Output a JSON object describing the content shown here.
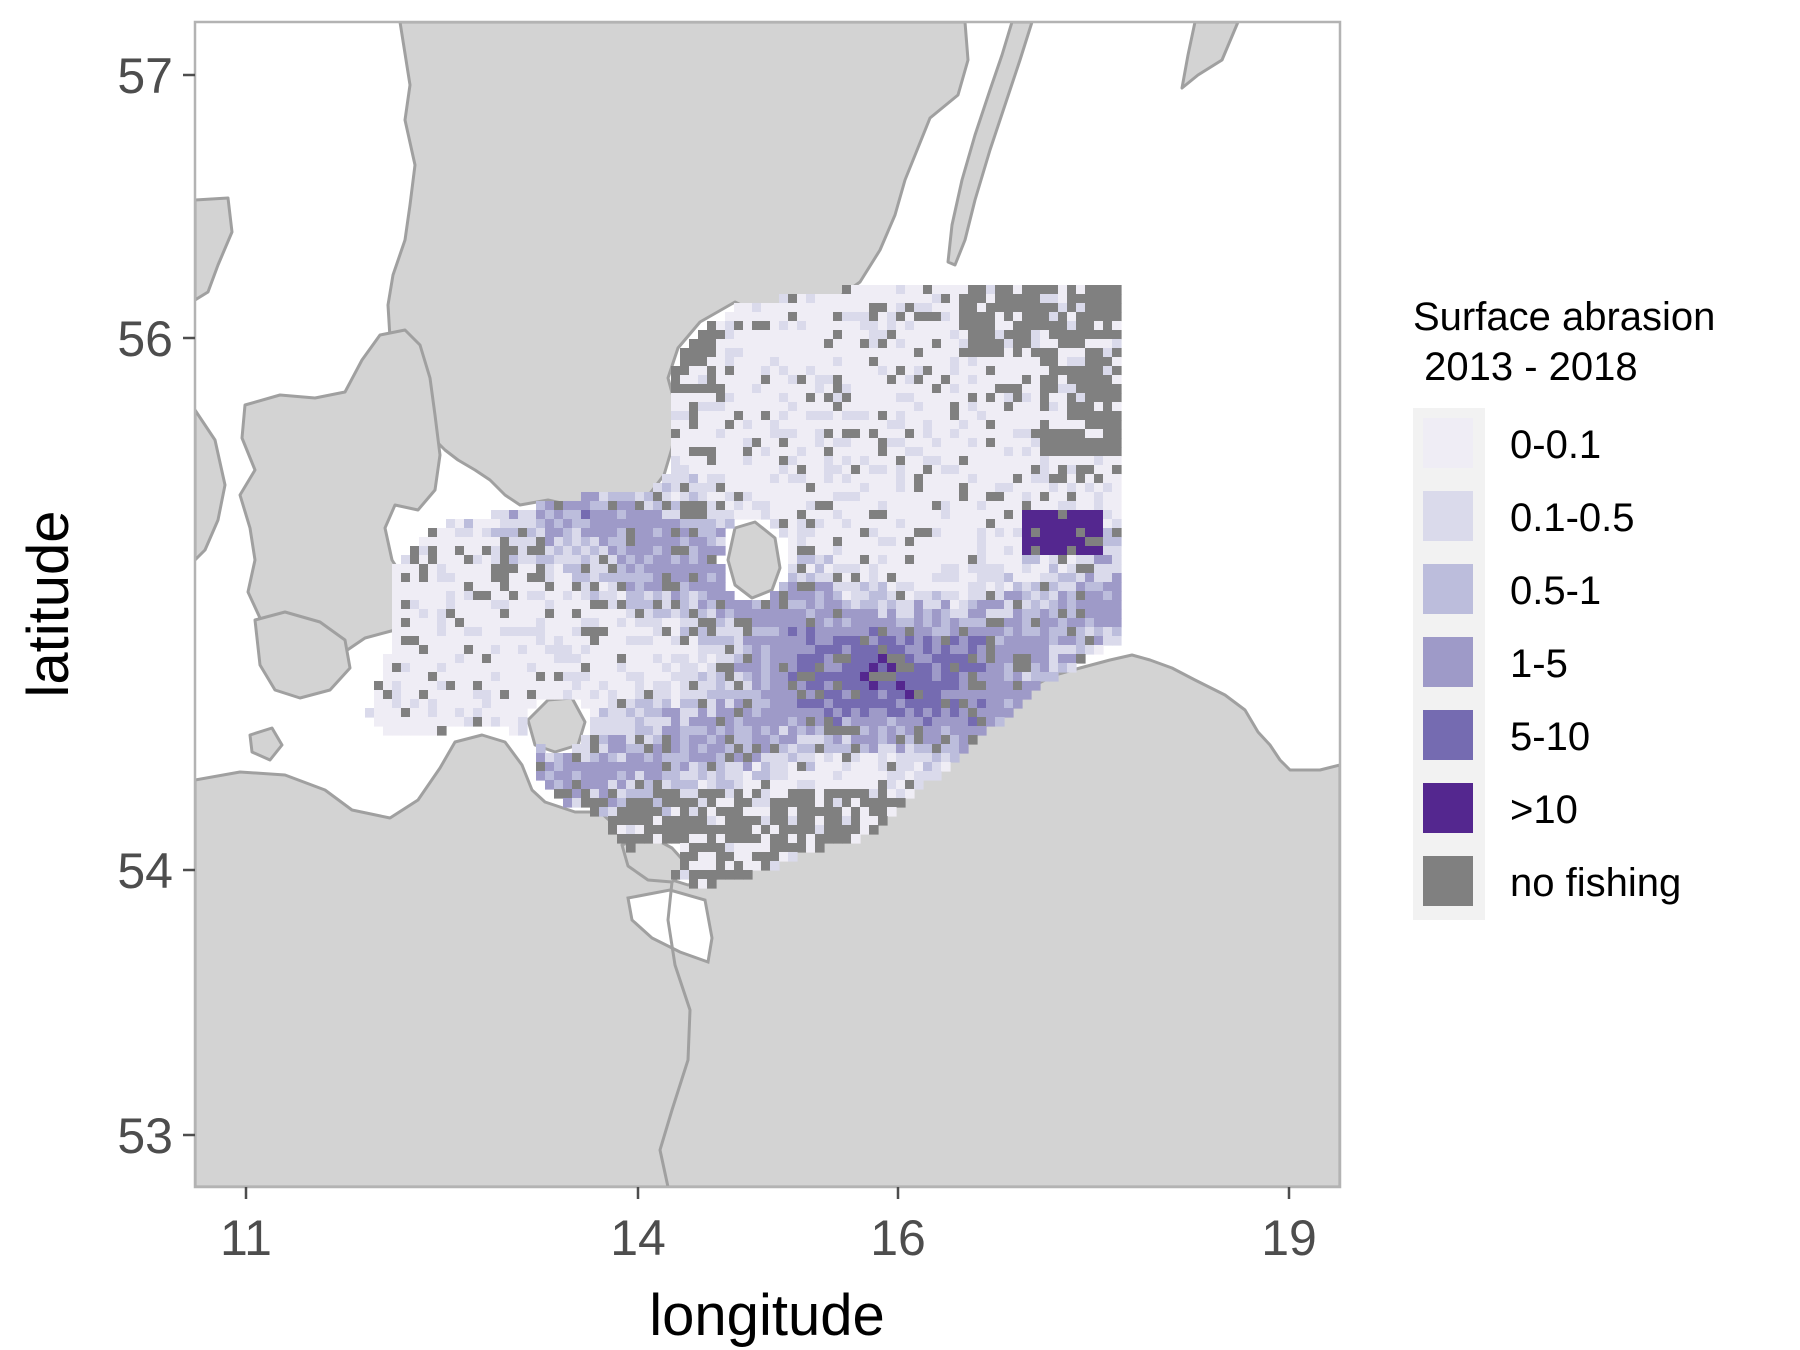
{
  "chart_data": {
    "type": "heatmap",
    "title": "",
    "xlabel": "longitude",
    "ylabel": "latitude",
    "x_ticks": [
      "11",
      "14",
      "16",
      "19"
    ],
    "y_ticks": [
      "53",
      "54",
      "56",
      "57"
    ],
    "xlim": [
      10.6,
      19.4
    ],
    "ylim": [
      52.8,
      57.2
    ],
    "grid": false,
    "legend": {
      "title": [
        "Surface abrasion",
        " 2013 - 2018"
      ],
      "placement": "right",
      "entries": [
        {
          "label": "0-0.1",
          "color": "#efedf5"
        },
        {
          "label": "0.1-0.5",
          "color": "#dadaeb"
        },
        {
          "label": "0.5-1",
          "color": "#bcbddc"
        },
        {
          "label": "1-5",
          "color": "#9e9ac8"
        },
        {
          "label": "5-10",
          "color": "#756bb1"
        },
        {
          "label": ">10",
          "color": "#54278f"
        },
        {
          "label": "no fishing",
          "color": "#808080"
        }
      ]
    },
    "colors": {
      "land": "#d3d3d3",
      "coast": "#a0a0a0",
      "sea": "#ffffff",
      "panel_border": "#b3b3b3"
    }
  }
}
